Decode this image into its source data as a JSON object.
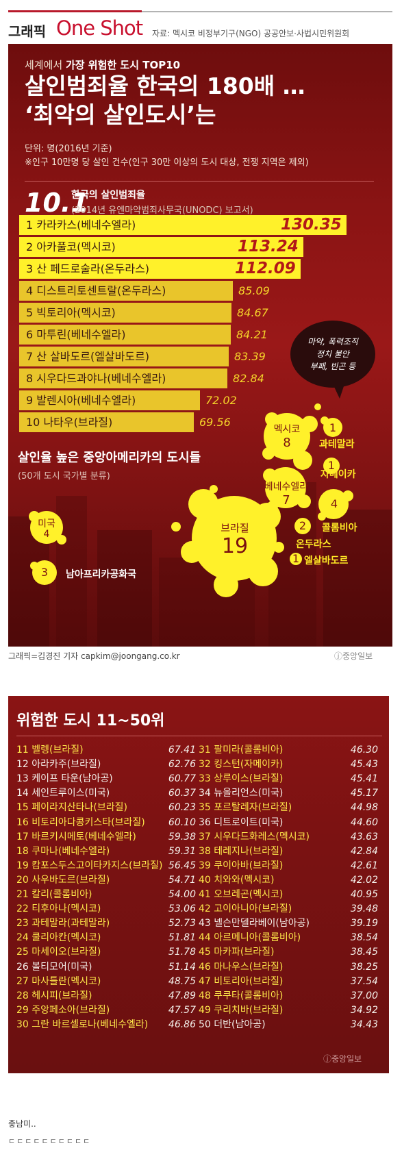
{
  "header": {
    "graphic_label": "그래픽",
    "oneshot_label": "One Shot",
    "source": "자료: 멕시코 비정부기구(NGO) 공공안보·사법시민위원회"
  },
  "panel1": {
    "subtitle_prefix": "세계에서",
    "subtitle_bold": "가장 위험한 도시 TOP10",
    "title_line1": "살인범죄율 한국의 180배 …",
    "title_line2": "‘최악의 살인도시’는",
    "unit": "단위: 명(2016년 기준)",
    "note": "※인구 10만명 당 살인 건수(인구 30만 이상의 도시 대상, 전쟁 지역은 제외)",
    "korea_value": "10.1",
    "korea_label": "한국의 살인범죄율",
    "korea_source": "(2014년 유엔마약범죄사무국(UNODC) 보고서)",
    "bubble_line1": "마약, 폭력조직",
    "bubble_line2": "정치 불안",
    "bubble_line3": "부패, 빈곤 등",
    "ca_title": "살인율 높은 중앙아메리카의 도시들",
    "ca_sub": "(50개 도시 국가별 분류)",
    "credit": "그래픽=김경진 기자 capkim@joongang.co.kr",
    "logo": "ⓙ중앙일보"
  },
  "countries": {
    "mexico": {
      "name": "멕시코",
      "count": "8"
    },
    "guatemala": {
      "name": "과테말라",
      "count": "1"
    },
    "jamaica": {
      "name": "자메이카",
      "count": "1"
    },
    "venezuela": {
      "name": "베네수엘라",
      "count": "7"
    },
    "colombia": {
      "name": "콜롬비아",
      "count": "4"
    },
    "brazil": {
      "name": "브라질",
      "count": "19"
    },
    "honduras": {
      "name": "온두라스",
      "count": "2"
    },
    "elsalvador": {
      "name": "엘살바도르",
      "count": "1"
    },
    "usa": {
      "name": "미국",
      "count": "4"
    },
    "southafrica": {
      "name": "남아프리카공화국",
      "count": "3"
    }
  },
  "chart_data": [
    {
      "type": "bar",
      "orientation": "horizontal",
      "title": "세계에서 가장 위험한 도시 TOP10",
      "unit": "명(2016년 기준)",
      "categories": [
        "1 카라카스(베네수엘라)",
        "2 아카풀코(멕시코)",
        "3 산 페드로술라(온두라스)",
        "4 디스트리토센트랄(온두라스)",
        "5 빅토리아(멕시코)",
        "6 마투린(베네수엘라)",
        "7 산 살바도르(엘살바도르)",
        "8 시우다드과야나(베네수엘라)",
        "9 발렌시아(베네수엘라)",
        "10 나타우(브라질)"
      ],
      "values": [
        130.35,
        113.24,
        112.09,
        85.09,
        84.67,
        84.21,
        83.39,
        82.84,
        72.02,
        69.56
      ],
      "value_labels": [
        "130.35",
        "113.24",
        "112.09",
        "85.09",
        "84.67",
        "84.21",
        "83.39",
        "82.84",
        "72.02",
        "69.56"
      ]
    },
    {
      "type": "table",
      "title": "위험한 도시 11~50위",
      "rows": [
        {
          "rank": "11",
          "name": "벨렝(브라질)",
          "value": "67.41"
        },
        {
          "rank": "12",
          "name": "아라카주(브라질)",
          "value": "62.76"
        },
        {
          "rank": "13",
          "name": "케이프 타운(남아공)",
          "value": "60.77"
        },
        {
          "rank": "14",
          "name": "세인트루이스(미국)",
          "value": "60.37"
        },
        {
          "rank": "15",
          "name": "페이라지산타나(브라질)",
          "value": "60.23"
        },
        {
          "rank": "16",
          "name": "비토리아다콩키스타(브라질)",
          "value": "60.10"
        },
        {
          "rank": "17",
          "name": "바르키시메토(베네수엘라)",
          "value": "59.38"
        },
        {
          "rank": "18",
          "name": "쿠마나(베네수엘라)",
          "value": "59.31"
        },
        {
          "rank": "19",
          "name": "캄포스두스고이타카지스(브라질)",
          "value": "56.45"
        },
        {
          "rank": "20",
          "name": "사우바도르(브라질)",
          "value": "54.71"
        },
        {
          "rank": "21",
          "name": "칼리(콜롬비아)",
          "value": "54.00"
        },
        {
          "rank": "22",
          "name": "티후아나(멕시코)",
          "value": "53.06"
        },
        {
          "rank": "23",
          "name": "과테말라(과테말라)",
          "value": "52.73"
        },
        {
          "rank": "24",
          "name": "쿨리아칸(멕시코)",
          "value": "51.81"
        },
        {
          "rank": "25",
          "name": "마세이오(브라질)",
          "value": "51.78"
        },
        {
          "rank": "26",
          "name": "볼티모어(미국)",
          "value": "51.14"
        },
        {
          "rank": "27",
          "name": "마사틀란(멕시코)",
          "value": "48.75"
        },
        {
          "rank": "28",
          "name": "헤시피(브라질)",
          "value": "47.89"
        },
        {
          "rank": "29",
          "name": "주앙페소아(브라질)",
          "value": "47.57"
        },
        {
          "rank": "30",
          "name": "그란 바르셀로나(베네수엘라)",
          "value": "46.86"
        },
        {
          "rank": "31",
          "name": "팔미라(콜롬비아)",
          "value": "46.30"
        },
        {
          "rank": "32",
          "name": "킹스턴(자메이카)",
          "value": "45.43"
        },
        {
          "rank": "33",
          "name": "상루이스(브라질)",
          "value": "45.41"
        },
        {
          "rank": "34",
          "name": "뉴올리언스(미국)",
          "value": "45.17"
        },
        {
          "rank": "35",
          "name": "포르탈레자(브라질)",
          "value": "44.98"
        },
        {
          "rank": "36",
          "name": "디트로이트(미국)",
          "value": "44.60"
        },
        {
          "rank": "37",
          "name": "시우다드화레스(멕시코)",
          "value": "43.63"
        },
        {
          "rank": "38",
          "name": "테레지나(브라질)",
          "value": "42.84"
        },
        {
          "rank": "39",
          "name": "쿠이아바(브라질)",
          "value": "42.61"
        },
        {
          "rank": "40",
          "name": "치와와(멕시코)",
          "value": "42.02"
        },
        {
          "rank": "41",
          "name": "오브레곤(멕시코)",
          "value": "40.95"
        },
        {
          "rank": "42",
          "name": "고이아니아(브라질)",
          "value": "39.48"
        },
        {
          "rank": "43",
          "name": "넬슨만델라베이(남아공)",
          "value": "39.19"
        },
        {
          "rank": "44",
          "name": "아르메니아(콜롬비아)",
          "value": "38.54"
        },
        {
          "rank": "45",
          "name": "마카파(브라질)",
          "value": "38.45"
        },
        {
          "rank": "46",
          "name": "마나우스(브라질)",
          "value": "38.25"
        },
        {
          "rank": "47",
          "name": "비토리아(브라질)",
          "value": "37.54"
        },
        {
          "rank": "48",
          "name": "쿠쿠타(콜롬비아)",
          "value": "37.00"
        },
        {
          "rank": "49",
          "name": "쿠리치바(브라질)",
          "value": "34.92"
        },
        {
          "rank": "50",
          "name": "더반(남아공)",
          "value": "34.43"
        }
      ]
    }
  ],
  "panel2": {
    "title": "위험한 도시 11~50위",
    "logo": "ⓙ중앙일보"
  },
  "footer": {
    "line1": "좋남미..",
    "line2": "ㄷㄷㄷㄷㄷㄷㄷㄷㄷㄷ"
  },
  "colors": {
    "panel_red": "#8b1414",
    "bar_yellow": "#e9c52b",
    "bar_top3": "#fff12a",
    "splat_yellow": "#fff12a",
    "brand_red": "#c8102e"
  }
}
